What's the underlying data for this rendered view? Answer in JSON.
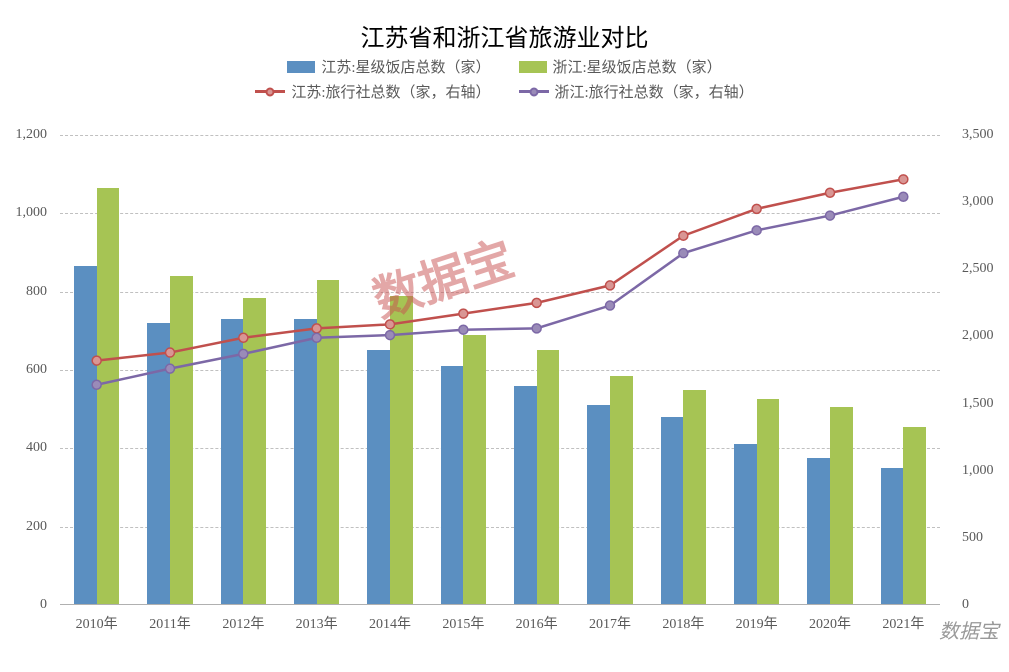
{
  "title": "江苏省和浙江省旅游业对比",
  "title_fontsize": 24,
  "background_color": "#ffffff",
  "grid_color": "#c0c0c0",
  "axis_label_color": "#595959",
  "axis_fontsize": 14,
  "watermark_main": "数据宝",
  "watermark_main_color": "rgba(200,80,80,0.5)",
  "watermark_small": "数据宝",
  "watermark_small_color": "#999999",
  "legend": {
    "fontsize": 15,
    "text_color": "#595959",
    "items": [
      {
        "label": "江苏:星级饭店总数（家）",
        "type": "bar",
        "color": "#5b8fc1"
      },
      {
        "label": "浙江:星级饭店总数（家）",
        "type": "bar",
        "color": "#a6c454"
      },
      {
        "label": "江苏:旅行社总数（家，右轴）",
        "type": "line",
        "color": "#c0504d",
        "marker_fill": "#d99694"
      },
      {
        "label": "浙江:旅行社总数（家，右轴）",
        "type": "line",
        "color": "#7c68a6",
        "marker_fill": "#9a8bb8"
      }
    ]
  },
  "chart": {
    "type": "bar+line",
    "categories": [
      "2010年",
      "2011年",
      "2012年",
      "2013年",
      "2014年",
      "2015年",
      "2016年",
      "2017年",
      "2018年",
      "2019年",
      "2020年",
      "2021年"
    ],
    "left_axis": {
      "min": 0,
      "max": 1200,
      "step": 200,
      "ticks": [
        "0",
        "200",
        "400",
        "600",
        "800",
        "1,000",
        "1,200"
      ]
    },
    "right_axis": {
      "min": 0,
      "max": 3500,
      "step": 500,
      "ticks": [
        "0",
        "500",
        "1,000",
        "1,500",
        "2,000",
        "2,500",
        "3,000",
        "3,500"
      ]
    },
    "bar_series": [
      {
        "name": "江苏:星级饭店总数（家）",
        "color": "#5b8fc1",
        "values": [
          865,
          720,
          730,
          730,
          650,
          610,
          560,
          510,
          480,
          410,
          375,
          350
        ]
      },
      {
        "name": "浙江:星级饭店总数（家）",
        "color": "#a6c454",
        "values": [
          1065,
          840,
          785,
          830,
          790,
          690,
          650,
          585,
          550,
          525,
          505,
          455
        ]
      }
    ],
    "line_series": [
      {
        "name": "江苏:旅行社总数（家，右轴）",
        "color": "#c0504d",
        "marker_fill": "#d99694",
        "line_width": 2.5,
        "marker_size": 9,
        "values": [
          1820,
          1880,
          1990,
          2060,
          2090,
          2170,
          2250,
          2380,
          2750,
          2950,
          3070,
          3170
        ]
      },
      {
        "name": "浙江:旅行社总数（家，右轴）",
        "color": "#7c68a6",
        "marker_fill": "#9a8bb8",
        "line_width": 2.5,
        "marker_size": 9,
        "values": [
          1640,
          1760,
          1870,
          1990,
          2010,
          2050,
          2060,
          2230,
          2620,
          2790,
          2900,
          3040
        ]
      }
    ],
    "bar_group_width_ratio": 0.62,
    "bar_gap_ratio": 0.0
  }
}
